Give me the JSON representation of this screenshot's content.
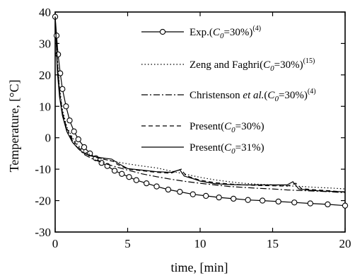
{
  "chart_data": {
    "type": "line",
    "xlabel": "time, [min]",
    "ylabel": "Temperature, [°C]",
    "xlim": [
      0,
      20
    ],
    "ylim": [
      -30,
      40
    ],
    "xticks": [
      0,
      5,
      10,
      15,
      20
    ],
    "yticks": [
      -30,
      -20,
      -10,
      0,
      10,
      20,
      30,
      40
    ],
    "grid": false,
    "legend_position": "top-right",
    "series": [
      {
        "name": "Exp.(C0=30%)(4)",
        "legend": {
          "pre": "Exp.(",
          "italic": "C",
          "sub": "0",
          "post": "=30%)",
          "sup": "(4)"
        },
        "style": "solid-circles",
        "x": [
          0,
          0.1,
          0.2,
          0.35,
          0.5,
          0.75,
          1.0,
          1.3,
          1.6,
          2.0,
          2.4,
          2.8,
          3.2,
          3.6,
          4.1,
          4.6,
          5.1,
          5.6,
          6.3,
          7.0,
          7.8,
          8.6,
          9.5,
          10.4,
          11.3,
          12.3,
          13.3,
          14.3,
          15.4,
          16.5,
          17.6,
          18.8,
          20.0
        ],
        "y": [
          38.5,
          32.5,
          26.5,
          20.5,
          15.5,
          10.0,
          5.5,
          2.0,
          -0.5,
          -3.0,
          -5.0,
          -6.5,
          -8.0,
          -9.0,
          -10.5,
          -11.5,
          -12.5,
          -13.5,
          -14.5,
          -15.5,
          -16.5,
          -17.2,
          -18.0,
          -18.5,
          -19.0,
          -19.4,
          -19.8,
          -20.0,
          -20.3,
          -20.6,
          -20.9,
          -21.2,
          -21.6
        ]
      },
      {
        "name": "Zeng and Faghri(C0=30%)(15)",
        "legend": {
          "pre": "Zeng and Faghri(",
          "italic": "C",
          "sub": "0",
          "post": "=30%)",
          "sup": "(15)"
        },
        "style": "dotted",
        "x": [
          0,
          0.15,
          0.3,
          0.5,
          0.8,
          1.2,
          1.6,
          2.0,
          2.5,
          3.0,
          3.5,
          4.0,
          5.0,
          6.0,
          7.0,
          8.0,
          9.0,
          10.0,
          11.0,
          12.0,
          13.0,
          14.0,
          15.0,
          16.0,
          17.0,
          18.0,
          19.0,
          20.0
        ],
        "y": [
          38.5,
          25.0,
          16.0,
          9.0,
          3.5,
          0.0,
          -2.5,
          -4.3,
          -5.6,
          -6.5,
          -7.0,
          -7.5,
          -8.3,
          -9.0,
          -9.6,
          -10.6,
          -11.6,
          -12.6,
          -13.4,
          -14.0,
          -14.5,
          -14.8,
          -15.0,
          -15.3,
          -15.5,
          -15.8,
          -16.0,
          -16.3
        ]
      },
      {
        "name": "Christenson et al.(C0=30%)(4)",
        "legend": {
          "pre": "Christenson ",
          "italicWords": "et al.",
          "post0": "(",
          "italic": "C",
          "sub": "0",
          "post": "=30%)",
          "sup": "(4)"
        },
        "style": "dashdot",
        "x": [
          0,
          0.15,
          0.3,
          0.5,
          0.8,
          1.2,
          1.6,
          2.0,
          2.5,
          3.0,
          3.5,
          4.0,
          5.0,
          6.0,
          7.0,
          8.0,
          9.0,
          10.0,
          11.0,
          12.0,
          13.0,
          14.0,
          15.0,
          16.0,
          17.0,
          18.0,
          19.0,
          20.0
        ],
        "y": [
          38.5,
          24.0,
          15.0,
          8.0,
          2.5,
          -1.0,
          -3.5,
          -5.3,
          -6.6,
          -7.5,
          -8.3,
          -9.0,
          -10.3,
          -11.5,
          -12.4,
          -13.2,
          -13.9,
          -14.5,
          -15.0,
          -15.5,
          -15.8,
          -16.1,
          -16.3,
          -16.6,
          -16.8,
          -17.0,
          -17.2,
          -17.5
        ]
      },
      {
        "name": "Present(C0=30%)",
        "legend": {
          "pre": "Present(",
          "italic": "C",
          "sub": "0",
          "post": "=30%)",
          "sup": ""
        },
        "style": "dashed",
        "x": [
          0,
          0.15,
          0.3,
          0.5,
          0.8,
          1.2,
          1.6,
          2.0,
          2.5,
          3.0,
          3.5,
          4.0,
          4.3,
          5.0,
          6.0,
          7.0,
          8.0,
          8.7,
          9.0,
          9.5,
          10.0,
          11.0,
          12.0,
          13.0,
          14.0,
          15.0,
          16.0,
          16.6,
          17.0,
          18.0,
          19.0,
          20.0
        ],
        "y": [
          38.5,
          23.0,
          14.5,
          8.0,
          3.0,
          -0.5,
          -3.0,
          -4.8,
          -5.8,
          -6.5,
          -7.0,
          -7.5,
          -8.5,
          -10.0,
          -10.5,
          -11.0,
          -11.3,
          -10.0,
          -12.0,
          -12.8,
          -13.5,
          -14.3,
          -14.7,
          -15.0,
          -15.2,
          -15.3,
          -15.4,
          -14.5,
          -16.2,
          -16.6,
          -16.9,
          -17.3
        ]
      },
      {
        "name": "Present(C0=31%)",
        "legend": {
          "pre": "Present(",
          "italic": "C",
          "sub": "0",
          "post": "=31%)",
          "sup": ""
        },
        "style": "solid",
        "x": [
          0,
          0.15,
          0.3,
          0.5,
          0.8,
          1.2,
          1.6,
          2.0,
          2.5,
          3.0,
          3.5,
          3.9,
          4.4,
          5.0,
          6.0,
          7.0,
          8.0,
          8.6,
          8.9,
          9.5,
          10.0,
          11.0,
          12.0,
          13.0,
          14.0,
          15.0,
          16.0,
          16.4,
          16.8,
          17.5,
          18.5,
          20.0
        ],
        "y": [
          38.5,
          21.0,
          13.0,
          7.0,
          2.0,
          -1.5,
          -3.5,
          -5.0,
          -5.8,
          -6.2,
          -6.6,
          -6.8,
          -8.3,
          -9.8,
          -10.3,
          -10.8,
          -11.0,
          -10.2,
          -12.2,
          -13.0,
          -13.8,
          -14.6,
          -14.9,
          -15.0,
          -15.0,
          -15.0,
          -15.0,
          -14.0,
          -16.3,
          -16.7,
          -17.0,
          -17.2
        ]
      }
    ]
  }
}
